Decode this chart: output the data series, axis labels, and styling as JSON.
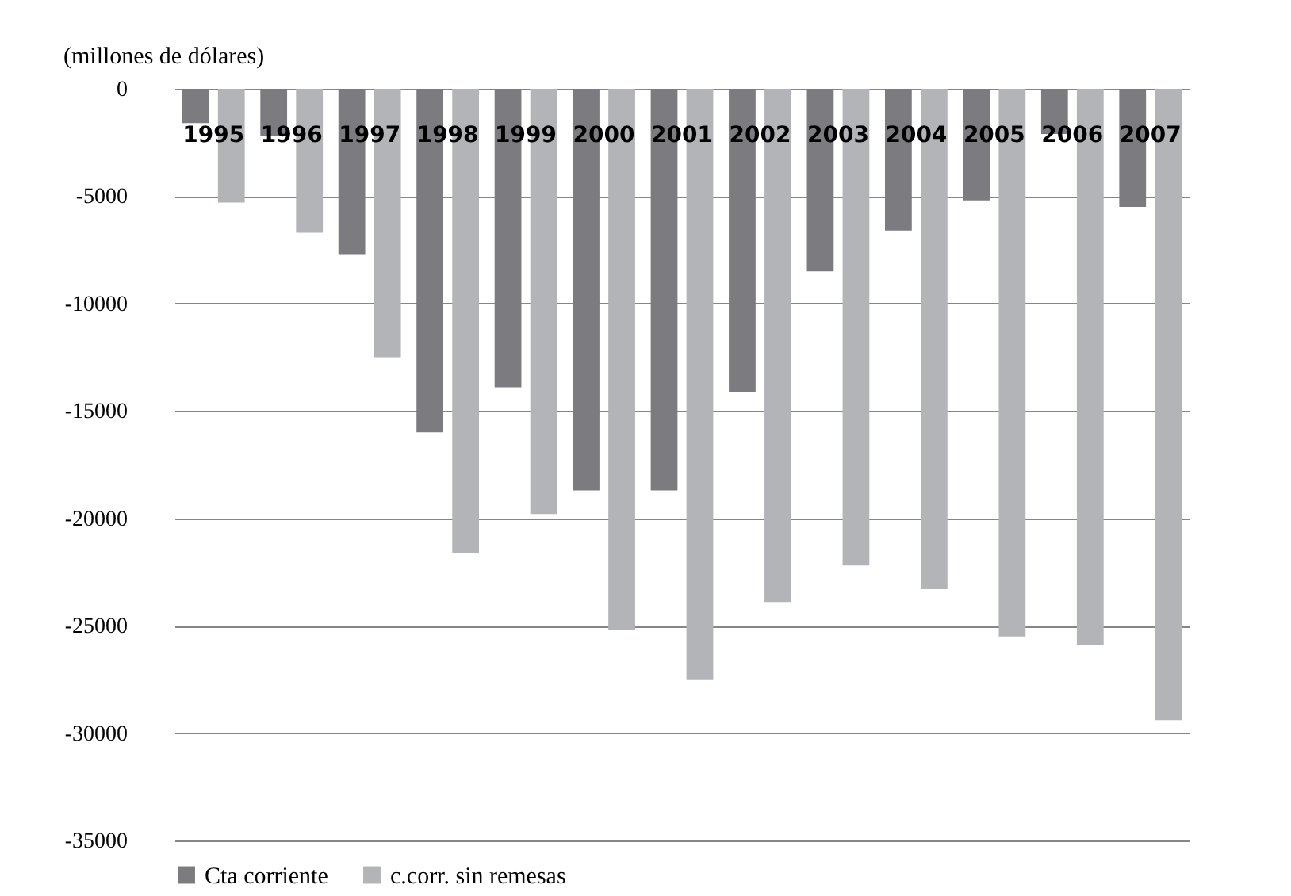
{
  "chart_data": {
    "type": "bar",
    "title": "(millones de dólares)",
    "categories": [
      "1995",
      "1996",
      "1997",
      "1998",
      "1999",
      "2000",
      "2001",
      "2002",
      "2003",
      "2004",
      "2005",
      "2006",
      "2007"
    ],
    "series": [
      {
        "name": "Cta corriente",
        "color": "#7b7b80",
        "values": [
          -1600,
          -2200,
          -7700,
          -16000,
          -13900,
          -18700,
          -18700,
          -14100,
          -8500,
          -6600,
          -5200,
          -2100,
          -5500
        ]
      },
      {
        "name": "c.corr. sin remesas",
        "color": "#b2b4b7",
        "values": [
          -5300,
          -6700,
          -12500,
          -21600,
          -19800,
          -25200,
          -27500,
          -23900,
          -22200,
          -23300,
          -25500,
          -25900,
          -29400
        ]
      }
    ],
    "ylim": [
      -35000,
      0
    ],
    "yticks": [
      0,
      -5000,
      -10000,
      -15000,
      -20000,
      -25000,
      -30000,
      -35000
    ],
    "grid": "y",
    "legend": "bottom"
  }
}
